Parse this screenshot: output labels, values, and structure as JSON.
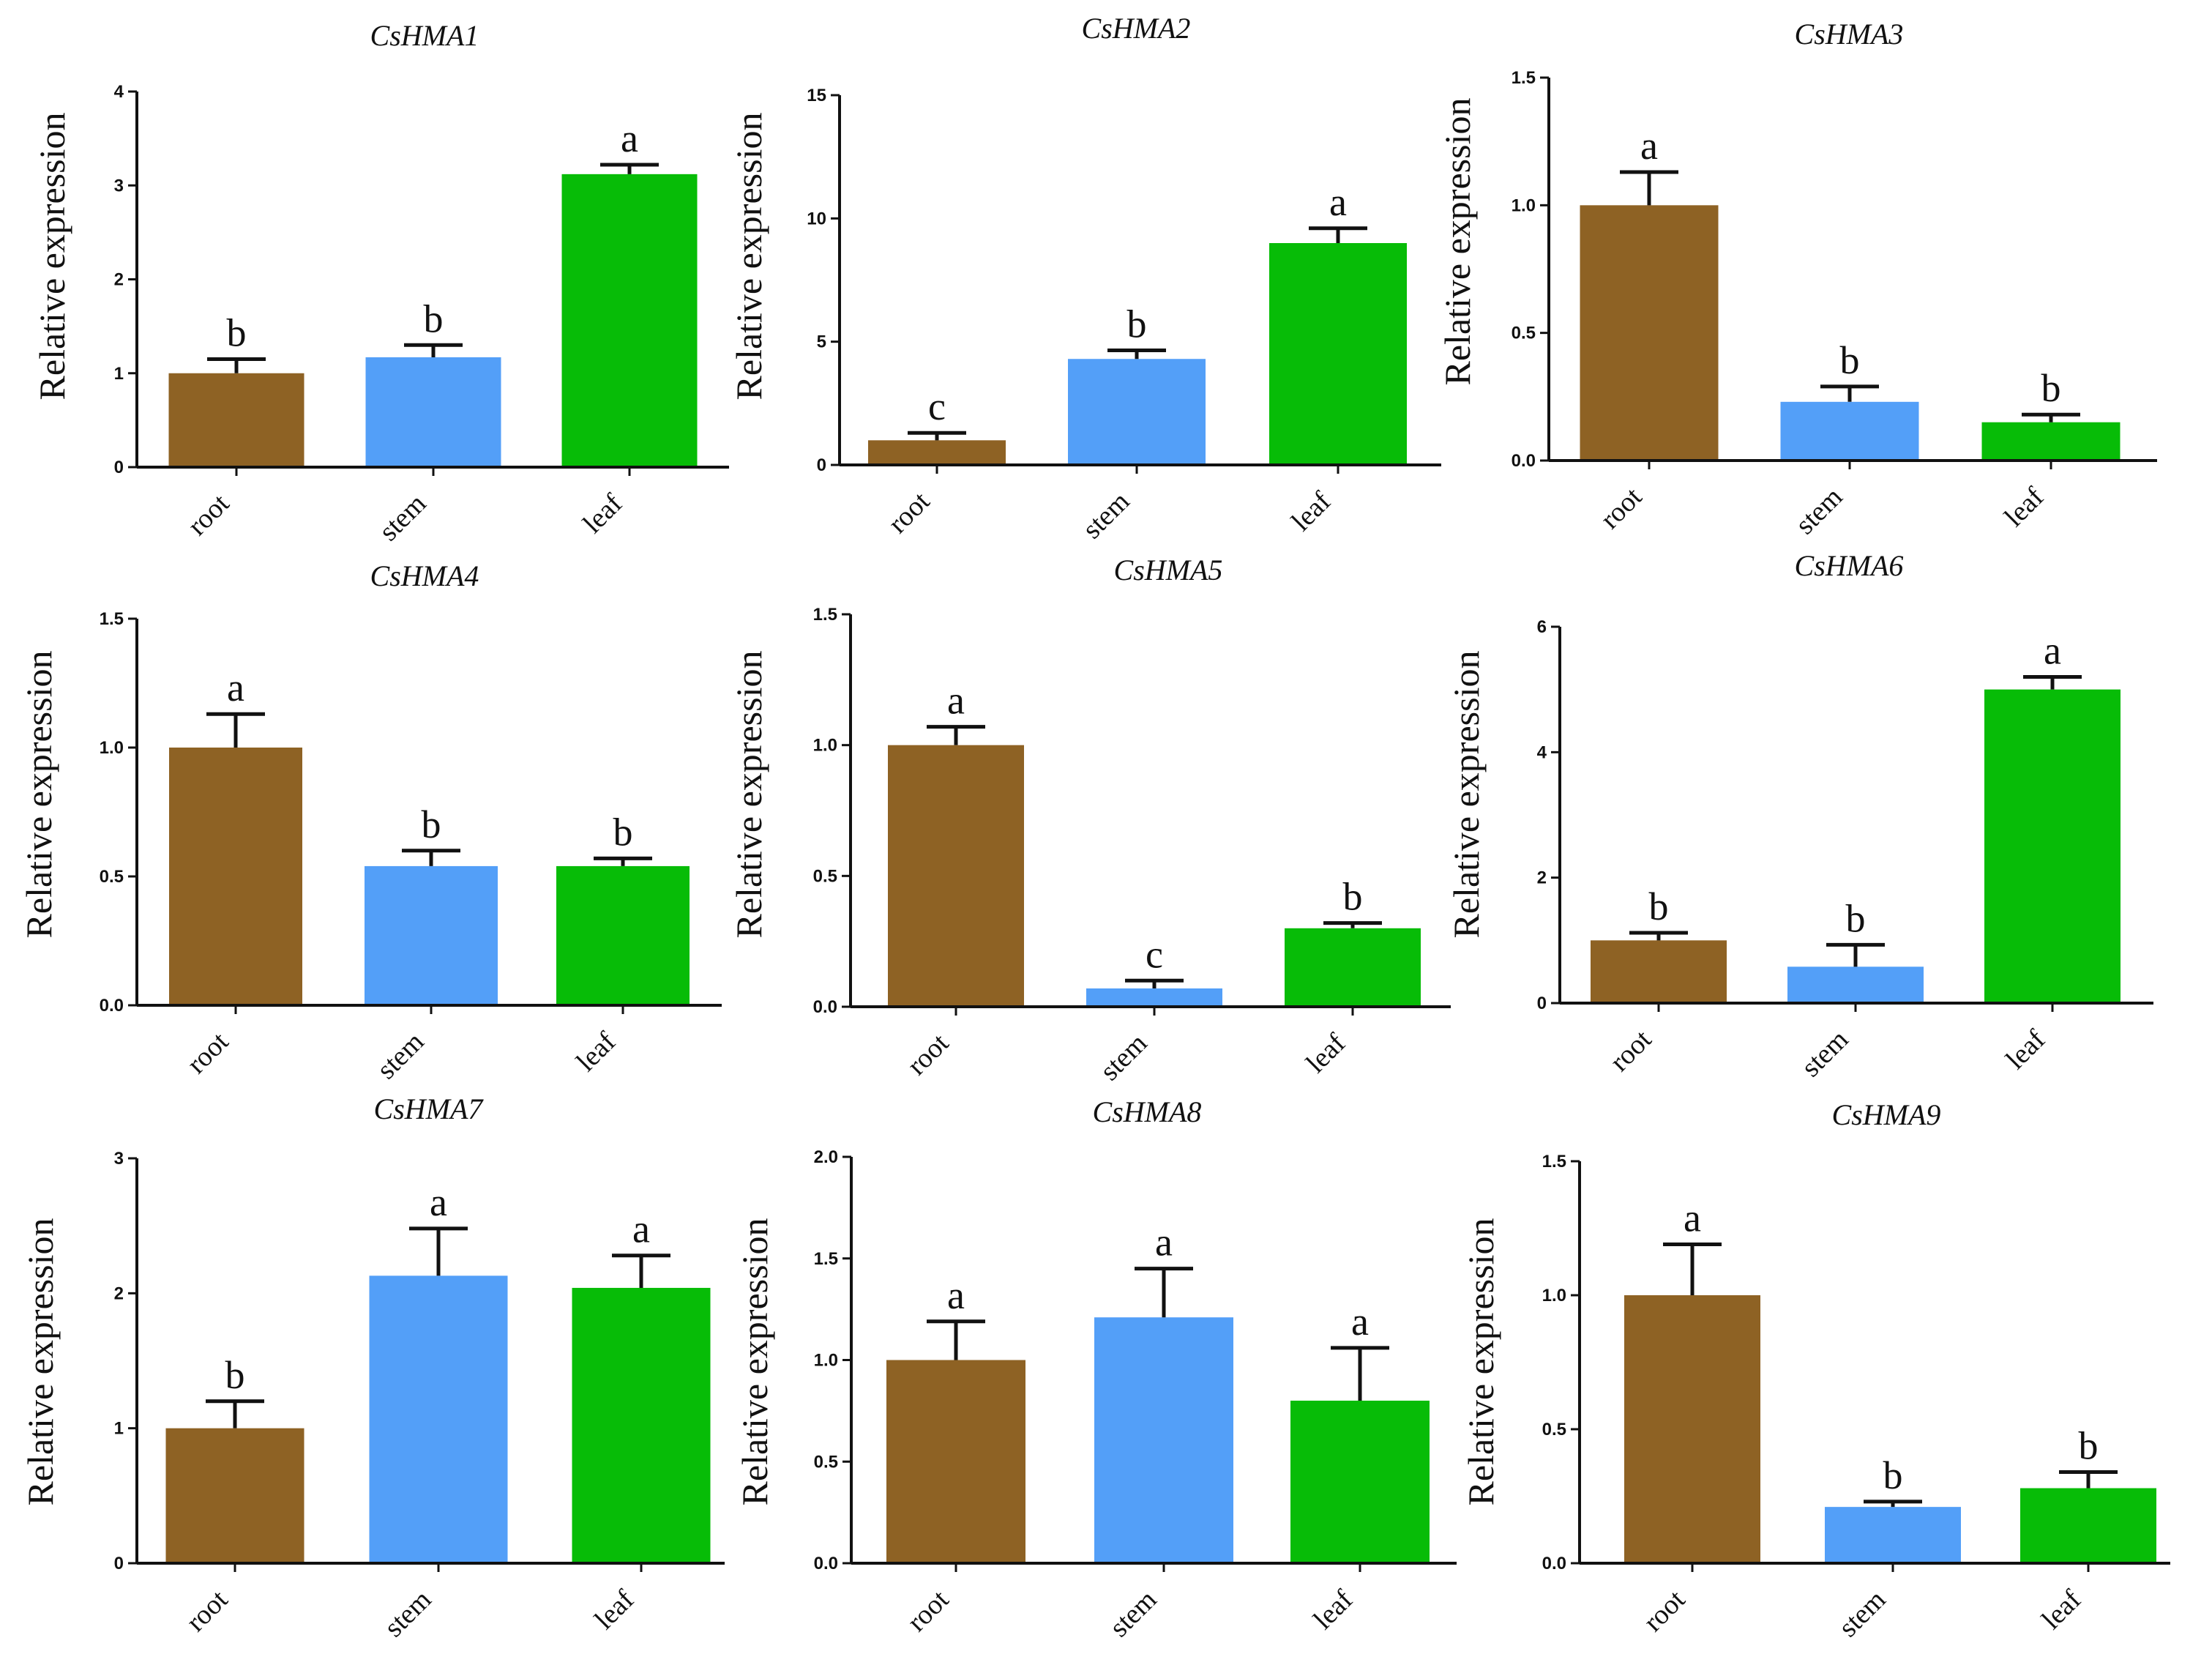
{
  "figure": {
    "category_labels": [
      "root",
      "stem",
      "leaf"
    ],
    "bar_colors": [
      "#8e6224",
      "#539ff8",
      "#07bc07"
    ],
    "ylabel": "Relative expression"
  },
  "chart_data": [
    {
      "type": "bar",
      "title": "CsHMA1",
      "ylabel": "Relative expression",
      "categories": [
        "root",
        "stem",
        "leaf"
      ],
      "values": [
        1.0,
        1.17,
        3.12
      ],
      "errors": [
        0.15,
        0.13,
        0.1
      ],
      "significance": [
        "b",
        "b",
        "a"
      ],
      "ylim": [
        0,
        4
      ],
      "yticks": [
        0,
        1,
        2,
        3,
        4
      ],
      "ytick_labels": [
        "0",
        "1",
        "2",
        "3",
        "4"
      ]
    },
    {
      "type": "bar",
      "title": "CsHMA2",
      "ylabel": "Relative expression",
      "categories": [
        "root",
        "stem",
        "leaf"
      ],
      "values": [
        1.0,
        4.3,
        9.0
      ],
      "errors": [
        0.3,
        0.35,
        0.6
      ],
      "significance": [
        "c",
        "b",
        "a"
      ],
      "ylim": [
        0,
        15
      ],
      "yticks": [
        0,
        5,
        10,
        15
      ],
      "ytick_labels": [
        "0",
        "5",
        "10",
        "15"
      ]
    },
    {
      "type": "bar",
      "title": "CsHMA3",
      "ylabel": "Relative expression",
      "categories": [
        "root",
        "stem",
        "leaf"
      ],
      "values": [
        1.0,
        0.23,
        0.15
      ],
      "errors": [
        0.13,
        0.06,
        0.03
      ],
      "significance": [
        "a",
        "b",
        "b"
      ],
      "ylim": [
        0,
        1.5
      ],
      "yticks": [
        0,
        0.5,
        1.0,
        1.5
      ],
      "ytick_labels": [
        "0.0",
        "0.5",
        "1.0",
        "1.5"
      ]
    },
    {
      "type": "bar",
      "title": "CsHMA4",
      "ylabel": "Relative expression",
      "categories": [
        "root",
        "stem",
        "leaf"
      ],
      "values": [
        1.0,
        0.54,
        0.54
      ],
      "errors": [
        0.13,
        0.06,
        0.03
      ],
      "significance": [
        "a",
        "b",
        "b"
      ],
      "ylim": [
        0,
        1.5
      ],
      "yticks": [
        0,
        0.5,
        1.0,
        1.5
      ],
      "ytick_labels": [
        "0.0",
        "0.5",
        "1.0",
        "1.5"
      ]
    },
    {
      "type": "bar",
      "title": "CsHMA5",
      "ylabel": "Relative expression",
      "categories": [
        "root",
        "stem",
        "leaf"
      ],
      "values": [
        1.0,
        0.07,
        0.3
      ],
      "errors": [
        0.07,
        0.03,
        0.02
      ],
      "significance": [
        "a",
        "c",
        "b"
      ],
      "ylim": [
        0,
        1.5
      ],
      "yticks": [
        0,
        0.5,
        1.0,
        1.5
      ],
      "ytick_labels": [
        "0.0",
        "0.5",
        "1.0",
        "1.5"
      ]
    },
    {
      "type": "bar",
      "title": "CsHMA6",
      "ylabel": "Relative expression",
      "categories": [
        "root",
        "stem",
        "leaf"
      ],
      "values": [
        1.0,
        0.58,
        5.0
      ],
      "errors": [
        0.12,
        0.35,
        0.2
      ],
      "significance": [
        "b",
        "b",
        "a"
      ],
      "ylim": [
        0,
        6
      ],
      "yticks": [
        0,
        2,
        4,
        6
      ],
      "ytick_labels": [
        "0",
        "2",
        "4",
        "6"
      ]
    },
    {
      "type": "bar",
      "title": "CsHMA7",
      "ylabel": "Relative expression",
      "categories": [
        "root",
        "stem",
        "leaf"
      ],
      "values": [
        1.0,
        2.13,
        2.04
      ],
      "errors": [
        0.2,
        0.35,
        0.24
      ],
      "significance": [
        "b",
        "a",
        "a"
      ],
      "ylim": [
        0,
        3
      ],
      "yticks": [
        0,
        1,
        2,
        3
      ],
      "ytick_labels": [
        "0",
        "1",
        "2",
        "3"
      ]
    },
    {
      "type": "bar",
      "title": "CsHMA8",
      "ylabel": "Relative expression",
      "categories": [
        "root",
        "stem",
        "leaf"
      ],
      "values": [
        1.0,
        1.21,
        0.8
      ],
      "errors": [
        0.19,
        0.24,
        0.26
      ],
      "significance": [
        "a",
        "a",
        "a"
      ],
      "ylim": [
        0,
        2.0
      ],
      "yticks": [
        0,
        0.5,
        1.0,
        1.5,
        2.0
      ],
      "ytick_labels": [
        "0.0",
        "0.5",
        "1.0",
        "1.5",
        "2.0"
      ]
    },
    {
      "type": "bar",
      "title": "CsHMA9",
      "ylabel": "Relative expression",
      "categories": [
        "root",
        "stem",
        "leaf"
      ],
      "values": [
        1.0,
        0.21,
        0.28
      ],
      "errors": [
        0.19,
        0.02,
        0.06
      ],
      "significance": [
        "a",
        "b",
        "b"
      ],
      "ylim": [
        0,
        1.5
      ],
      "yticks": [
        0,
        0.5,
        1.0,
        1.5
      ],
      "ytick_labels": [
        "0.0",
        "0.5",
        "1.0",
        "1.5"
      ]
    }
  ]
}
